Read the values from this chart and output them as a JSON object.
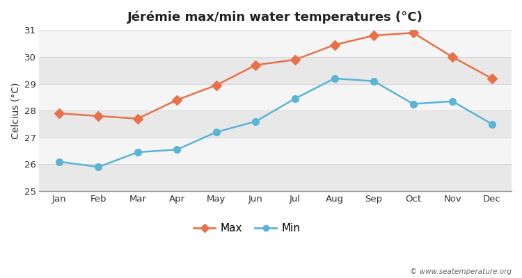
{
  "title": "Jérémie max/min water temperatures (°C)",
  "ylabel": "Celcius (°C)",
  "months": [
    "Jan",
    "Feb",
    "Mar",
    "Apr",
    "May",
    "Jun",
    "Jul",
    "Aug",
    "Sep",
    "Oct",
    "Nov",
    "Dec"
  ],
  "max_values": [
    27.9,
    27.8,
    27.7,
    28.4,
    28.95,
    29.7,
    29.9,
    30.45,
    30.8,
    30.9,
    30.0,
    29.2
  ],
  "min_values": [
    26.1,
    25.9,
    26.45,
    26.55,
    27.2,
    27.6,
    28.45,
    29.2,
    29.1,
    28.25,
    28.35,
    27.5
  ],
  "max_color": "#e8714a",
  "min_color": "#5ab4d6",
  "fig_bg_color": "#ffffff",
  "plot_bg_color": "#f0f0f0",
  "band_color_light": "#e8e8e8",
  "band_color_white": "#f5f5f5",
  "ylim": [
    25,
    31
  ],
  "yticks": [
    25,
    26,
    27,
    28,
    29,
    30,
    31
  ],
  "grid_color": "#ffffff",
  "watermark": "© www.seatemperature.org",
  "legend_labels": [
    "Max",
    "Min"
  ]
}
